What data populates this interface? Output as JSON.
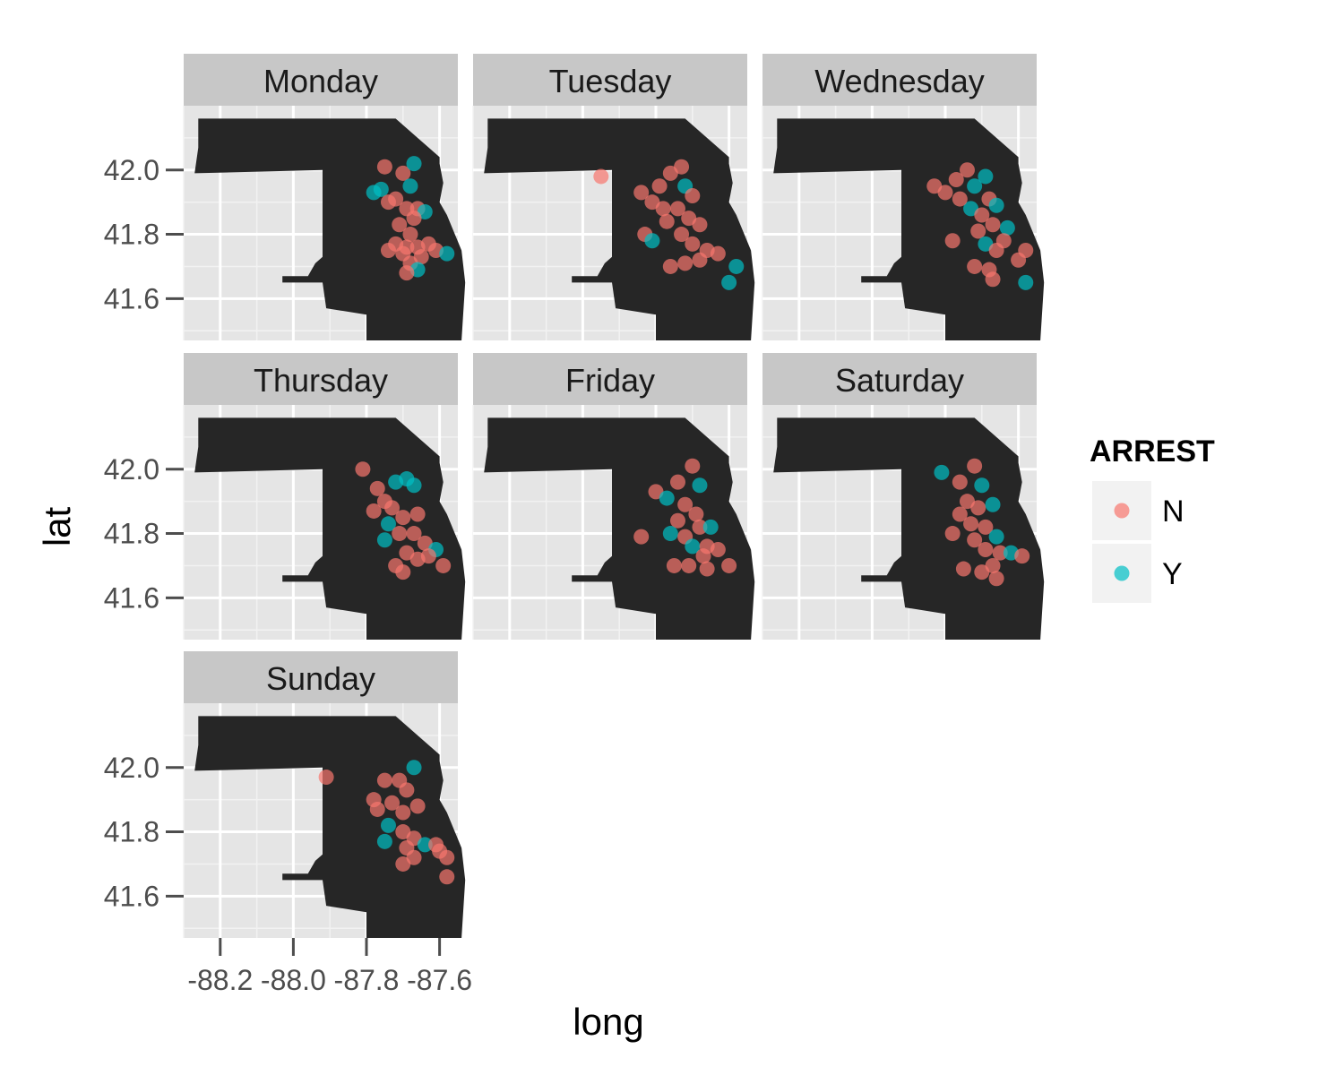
{
  "chart_data": {
    "type": "scatter",
    "subtype": "faceted map scatter",
    "xlabel": "long",
    "ylabel": "lat",
    "x_ticks": [
      -88.2,
      -88.0,
      -87.8,
      -87.6
    ],
    "x_tick_labels": [
      "-88.2",
      "-88.0",
      "-87.8",
      "-87.6"
    ],
    "y_ticks": [
      41.6,
      41.8,
      42.0
    ],
    "y_tick_labels": [
      "41.6",
      "41.8",
      "42.0"
    ],
    "xlim": [
      -88.3,
      -87.55
    ],
    "ylim": [
      41.47,
      42.2
    ],
    "grid": true,
    "legend": {
      "title": "ARREST",
      "placement": "right",
      "entries": [
        {
          "label": "N",
          "color": "#F8766D"
        },
        {
          "label": "Y",
          "color": "#00BFC4"
        }
      ]
    },
    "colors": {
      "N": "#F8766D",
      "Y": "#00BFC4",
      "map_fill": "#262626",
      "panel_bg": "#E5E5E5",
      "strip_bg": "#C7C7C7"
    },
    "map_outline": [
      [
        -88.26,
        42.16
      ],
      [
        -88.22,
        42.16
      ],
      [
        -87.72,
        42.16
      ],
      [
        -87.65,
        42.09
      ],
      [
        -87.6,
        42.04
      ],
      [
        -87.6,
        42.02
      ],
      [
        -87.59,
        41.96
      ],
      [
        -87.6,
        41.9
      ],
      [
        -87.58,
        41.86
      ],
      [
        -87.54,
        41.75
      ],
      [
        -87.53,
        41.65
      ],
      [
        -87.54,
        41.47
      ],
      [
        -87.8,
        41.47
      ],
      [
        -87.8,
        41.55
      ],
      [
        -87.91,
        41.57
      ],
      [
        -87.92,
        41.65
      ],
      [
        -88.03,
        41.65
      ],
      [
        -88.03,
        41.67
      ],
      [
        -87.96,
        41.67
      ],
      [
        -87.94,
        41.71
      ],
      [
        -87.92,
        41.73
      ],
      [
        -87.92,
        42.0
      ],
      [
        -88.27,
        41.99
      ],
      [
        -88.26,
        42.07
      ]
    ],
    "facets": [
      {
        "day": "Monday",
        "points": [
          {
            "long": -87.75,
            "lat": 42.01,
            "arrest": "N"
          },
          {
            "long": -87.78,
            "lat": 41.93,
            "arrest": "Y"
          },
          {
            "long": -87.76,
            "lat": 41.94,
            "arrest": "Y"
          },
          {
            "long": -87.7,
            "lat": 41.99,
            "arrest": "N"
          },
          {
            "long": -87.67,
            "lat": 42.02,
            "arrest": "Y"
          },
          {
            "long": -87.68,
            "lat": 41.95,
            "arrest": "Y"
          },
          {
            "long": -87.74,
            "lat": 41.9,
            "arrest": "N"
          },
          {
            "long": -87.72,
            "lat": 41.91,
            "arrest": "N"
          },
          {
            "long": -87.69,
            "lat": 41.88,
            "arrest": "N"
          },
          {
            "long": -87.66,
            "lat": 41.88,
            "arrest": "N"
          },
          {
            "long": -87.64,
            "lat": 41.87,
            "arrest": "Y"
          },
          {
            "long": -87.67,
            "lat": 41.85,
            "arrest": "N"
          },
          {
            "long": -87.71,
            "lat": 41.83,
            "arrest": "N"
          },
          {
            "long": -87.68,
            "lat": 41.8,
            "arrest": "N"
          },
          {
            "long": -87.72,
            "lat": 41.77,
            "arrest": "N"
          },
          {
            "long": -87.69,
            "lat": 41.76,
            "arrest": "N"
          },
          {
            "long": -87.66,
            "lat": 41.76,
            "arrest": "N"
          },
          {
            "long": -87.63,
            "lat": 41.77,
            "arrest": "N"
          },
          {
            "long": -87.61,
            "lat": 41.75,
            "arrest": "N"
          },
          {
            "long": -87.65,
            "lat": 41.73,
            "arrest": "N"
          },
          {
            "long": -87.68,
            "lat": 41.71,
            "arrest": "N"
          },
          {
            "long": -87.66,
            "lat": 41.69,
            "arrest": "Y"
          },
          {
            "long": -87.69,
            "lat": 41.68,
            "arrest": "N"
          },
          {
            "long": -87.58,
            "lat": 41.74,
            "arrest": "Y"
          },
          {
            "long": -87.7,
            "lat": 41.74,
            "arrest": "N"
          },
          {
            "long": -87.74,
            "lat": 41.75,
            "arrest": "N"
          }
        ]
      },
      {
        "day": "Tuesday",
        "points": [
          {
            "long": -87.95,
            "lat": 41.98,
            "arrest": "N"
          },
          {
            "long": -87.84,
            "lat": 41.93,
            "arrest": "N"
          },
          {
            "long": -87.81,
            "lat": 41.9,
            "arrest": "N"
          },
          {
            "long": -87.79,
            "lat": 41.95,
            "arrest": "N"
          },
          {
            "long": -87.76,
            "lat": 41.99,
            "arrest": "N"
          },
          {
            "long": -87.73,
            "lat": 42.01,
            "arrest": "N"
          },
          {
            "long": -87.72,
            "lat": 41.95,
            "arrest": "Y"
          },
          {
            "long": -87.7,
            "lat": 41.92,
            "arrest": "N"
          },
          {
            "long": -87.74,
            "lat": 41.88,
            "arrest": "N"
          },
          {
            "long": -87.71,
            "lat": 41.85,
            "arrest": "N"
          },
          {
            "long": -87.68,
            "lat": 41.83,
            "arrest": "N"
          },
          {
            "long": -87.73,
            "lat": 41.8,
            "arrest": "N"
          },
          {
            "long": -87.83,
            "lat": 41.8,
            "arrest": "N"
          },
          {
            "long": -87.81,
            "lat": 41.78,
            "arrest": "Y"
          },
          {
            "long": -87.7,
            "lat": 41.77,
            "arrest": "N"
          },
          {
            "long": -87.66,
            "lat": 41.75,
            "arrest": "N"
          },
          {
            "long": -87.63,
            "lat": 41.74,
            "arrest": "N"
          },
          {
            "long": -87.68,
            "lat": 41.72,
            "arrest": "N"
          },
          {
            "long": -87.72,
            "lat": 41.71,
            "arrest": "N"
          },
          {
            "long": -87.76,
            "lat": 41.7,
            "arrest": "N"
          },
          {
            "long": -87.58,
            "lat": 41.7,
            "arrest": "Y"
          },
          {
            "long": -87.6,
            "lat": 41.65,
            "arrest": "Y"
          },
          {
            "long": -87.78,
            "lat": 41.88,
            "arrest": "N"
          },
          {
            "long": -87.77,
            "lat": 41.84,
            "arrest": "N"
          }
        ]
      },
      {
        "day": "Wednesday",
        "points": [
          {
            "long": -87.83,
            "lat": 41.95,
            "arrest": "N"
          },
          {
            "long": -87.8,
            "lat": 41.93,
            "arrest": "N"
          },
          {
            "long": -87.77,
            "lat": 41.97,
            "arrest": "N"
          },
          {
            "long": -87.74,
            "lat": 42.0,
            "arrest": "N"
          },
          {
            "long": -87.72,
            "lat": 41.95,
            "arrest": "Y"
          },
          {
            "long": -87.69,
            "lat": 41.98,
            "arrest": "Y"
          },
          {
            "long": -87.68,
            "lat": 41.91,
            "arrest": "N"
          },
          {
            "long": -87.73,
            "lat": 41.88,
            "arrest": "Y"
          },
          {
            "long": -87.7,
            "lat": 41.86,
            "arrest": "N"
          },
          {
            "long": -87.66,
            "lat": 41.89,
            "arrest": "Y"
          },
          {
            "long": -87.67,
            "lat": 41.83,
            "arrest": "N"
          },
          {
            "long": -87.71,
            "lat": 41.81,
            "arrest": "N"
          },
          {
            "long": -87.63,
            "lat": 41.82,
            "arrest": "Y"
          },
          {
            "long": -87.78,
            "lat": 41.78,
            "arrest": "N"
          },
          {
            "long": -87.69,
            "lat": 41.77,
            "arrest": "Y"
          },
          {
            "long": -87.66,
            "lat": 41.75,
            "arrest": "N"
          },
          {
            "long": -87.72,
            "lat": 41.7,
            "arrest": "N"
          },
          {
            "long": -87.68,
            "lat": 41.69,
            "arrest": "N"
          },
          {
            "long": -87.67,
            "lat": 41.66,
            "arrest": "N"
          },
          {
            "long": -87.6,
            "lat": 41.72,
            "arrest": "N"
          },
          {
            "long": -87.58,
            "lat": 41.75,
            "arrest": "N"
          },
          {
            "long": -87.58,
            "lat": 41.65,
            "arrest": "Y"
          },
          {
            "long": -87.64,
            "lat": 41.78,
            "arrest": "N"
          },
          {
            "long": -87.76,
            "lat": 41.91,
            "arrest": "N"
          }
        ]
      },
      {
        "day": "Thursday",
        "points": [
          {
            "long": -87.81,
            "lat": 42.0,
            "arrest": "N"
          },
          {
            "long": -87.77,
            "lat": 41.94,
            "arrest": "N"
          },
          {
            "long": -87.75,
            "lat": 41.9,
            "arrest": "N"
          },
          {
            "long": -87.72,
            "lat": 41.96,
            "arrest": "Y"
          },
          {
            "long": -87.69,
            "lat": 41.97,
            "arrest": "Y"
          },
          {
            "long": -87.67,
            "lat": 41.95,
            "arrest": "Y"
          },
          {
            "long": -87.73,
            "lat": 41.88,
            "arrest": "N"
          },
          {
            "long": -87.7,
            "lat": 41.85,
            "arrest": "N"
          },
          {
            "long": -87.66,
            "lat": 41.86,
            "arrest": "N"
          },
          {
            "long": -87.74,
            "lat": 41.83,
            "arrest": "Y"
          },
          {
            "long": -87.71,
            "lat": 41.8,
            "arrest": "N"
          },
          {
            "long": -87.67,
            "lat": 41.8,
            "arrest": "N"
          },
          {
            "long": -87.64,
            "lat": 41.77,
            "arrest": "N"
          },
          {
            "long": -87.61,
            "lat": 41.75,
            "arrest": "Y"
          },
          {
            "long": -87.69,
            "lat": 41.74,
            "arrest": "N"
          },
          {
            "long": -87.66,
            "lat": 41.72,
            "arrest": "N"
          },
          {
            "long": -87.72,
            "lat": 41.7,
            "arrest": "N"
          },
          {
            "long": -87.7,
            "lat": 41.68,
            "arrest": "N"
          },
          {
            "long": -87.59,
            "lat": 41.7,
            "arrest": "N"
          },
          {
            "long": -87.75,
            "lat": 41.78,
            "arrest": "Y"
          },
          {
            "long": -87.78,
            "lat": 41.87,
            "arrest": "N"
          },
          {
            "long": -87.63,
            "lat": 41.73,
            "arrest": "N"
          }
        ]
      },
      {
        "day": "Friday",
        "points": [
          {
            "long": -87.8,
            "lat": 41.93,
            "arrest": "N"
          },
          {
            "long": -87.77,
            "lat": 41.91,
            "arrest": "Y"
          },
          {
            "long": -87.74,
            "lat": 41.96,
            "arrest": "N"
          },
          {
            "long": -87.7,
            "lat": 42.01,
            "arrest": "N"
          },
          {
            "long": -87.68,
            "lat": 41.95,
            "arrest": "Y"
          },
          {
            "long": -87.72,
            "lat": 41.89,
            "arrest": "N"
          },
          {
            "long": -87.69,
            "lat": 41.86,
            "arrest": "N"
          },
          {
            "long": -87.74,
            "lat": 41.84,
            "arrest": "N"
          },
          {
            "long": -87.76,
            "lat": 41.8,
            "arrest": "Y"
          },
          {
            "long": -87.72,
            "lat": 41.79,
            "arrest": "N"
          },
          {
            "long": -87.68,
            "lat": 41.82,
            "arrest": "N"
          },
          {
            "long": -87.65,
            "lat": 41.82,
            "arrest": "Y"
          },
          {
            "long": -87.7,
            "lat": 41.76,
            "arrest": "Y"
          },
          {
            "long": -87.66,
            "lat": 41.76,
            "arrest": "N"
          },
          {
            "long": -87.63,
            "lat": 41.75,
            "arrest": "N"
          },
          {
            "long": -87.67,
            "lat": 41.73,
            "arrest": "N"
          },
          {
            "long": -87.71,
            "lat": 41.7,
            "arrest": "N"
          },
          {
            "long": -87.75,
            "lat": 41.7,
            "arrest": "N"
          },
          {
            "long": -87.6,
            "lat": 41.7,
            "arrest": "N"
          },
          {
            "long": -87.84,
            "lat": 41.79,
            "arrest": "N"
          },
          {
            "long": -87.66,
            "lat": 41.69,
            "arrest": "N"
          }
        ]
      },
      {
        "day": "Saturday",
        "points": [
          {
            "long": -87.81,
            "lat": 41.99,
            "arrest": "Y"
          },
          {
            "long": -87.76,
            "lat": 41.96,
            "arrest": "N"
          },
          {
            "long": -87.72,
            "lat": 42.01,
            "arrest": "N"
          },
          {
            "long": -87.7,
            "lat": 41.95,
            "arrest": "Y"
          },
          {
            "long": -87.74,
            "lat": 41.9,
            "arrest": "N"
          },
          {
            "long": -87.71,
            "lat": 41.88,
            "arrest": "N"
          },
          {
            "long": -87.67,
            "lat": 41.89,
            "arrest": "Y"
          },
          {
            "long": -87.76,
            "lat": 41.86,
            "arrest": "N"
          },
          {
            "long": -87.73,
            "lat": 41.83,
            "arrest": "N"
          },
          {
            "long": -87.69,
            "lat": 41.82,
            "arrest": "N"
          },
          {
            "long": -87.66,
            "lat": 41.79,
            "arrest": "Y"
          },
          {
            "long": -87.72,
            "lat": 41.78,
            "arrest": "N"
          },
          {
            "long": -87.69,
            "lat": 41.75,
            "arrest": "N"
          },
          {
            "long": -87.65,
            "lat": 41.74,
            "arrest": "N"
          },
          {
            "long": -87.62,
            "lat": 41.74,
            "arrest": "Y"
          },
          {
            "long": -87.67,
            "lat": 41.7,
            "arrest": "N"
          },
          {
            "long": -87.7,
            "lat": 41.68,
            "arrest": "N"
          },
          {
            "long": -87.66,
            "lat": 41.66,
            "arrest": "N"
          },
          {
            "long": -87.75,
            "lat": 41.69,
            "arrest": "N"
          },
          {
            "long": -87.59,
            "lat": 41.73,
            "arrest": "N"
          },
          {
            "long": -87.78,
            "lat": 41.8,
            "arrest": "N"
          }
        ]
      },
      {
        "day": "Sunday",
        "points": [
          {
            "long": -87.91,
            "lat": 41.97,
            "arrest": "N"
          },
          {
            "long": -87.78,
            "lat": 41.9,
            "arrest": "N"
          },
          {
            "long": -87.75,
            "lat": 41.96,
            "arrest": "N"
          },
          {
            "long": -87.71,
            "lat": 41.96,
            "arrest": "N"
          },
          {
            "long": -87.67,
            "lat": 42.0,
            "arrest": "Y"
          },
          {
            "long": -87.69,
            "lat": 41.93,
            "arrest": "N"
          },
          {
            "long": -87.73,
            "lat": 41.89,
            "arrest": "N"
          },
          {
            "long": -87.77,
            "lat": 41.87,
            "arrest": "N"
          },
          {
            "long": -87.7,
            "lat": 41.86,
            "arrest": "N"
          },
          {
            "long": -87.66,
            "lat": 41.88,
            "arrest": "N"
          },
          {
            "long": -87.74,
            "lat": 41.82,
            "arrest": "Y"
          },
          {
            "long": -87.7,
            "lat": 41.8,
            "arrest": "N"
          },
          {
            "long": -87.67,
            "lat": 41.78,
            "arrest": "N"
          },
          {
            "long": -87.75,
            "lat": 41.77,
            "arrest": "Y"
          },
          {
            "long": -87.69,
            "lat": 41.75,
            "arrest": "N"
          },
          {
            "long": -87.64,
            "lat": 41.76,
            "arrest": "Y"
          },
          {
            "long": -87.61,
            "lat": 41.76,
            "arrest": "N"
          },
          {
            "long": -87.67,
            "lat": 41.72,
            "arrest": "N"
          },
          {
            "long": -87.7,
            "lat": 41.7,
            "arrest": "N"
          },
          {
            "long": -87.58,
            "lat": 41.72,
            "arrest": "N"
          },
          {
            "long": -87.58,
            "lat": 41.66,
            "arrest": "N"
          },
          {
            "long": -87.6,
            "lat": 41.74,
            "arrest": "N"
          }
        ]
      }
    ]
  }
}
